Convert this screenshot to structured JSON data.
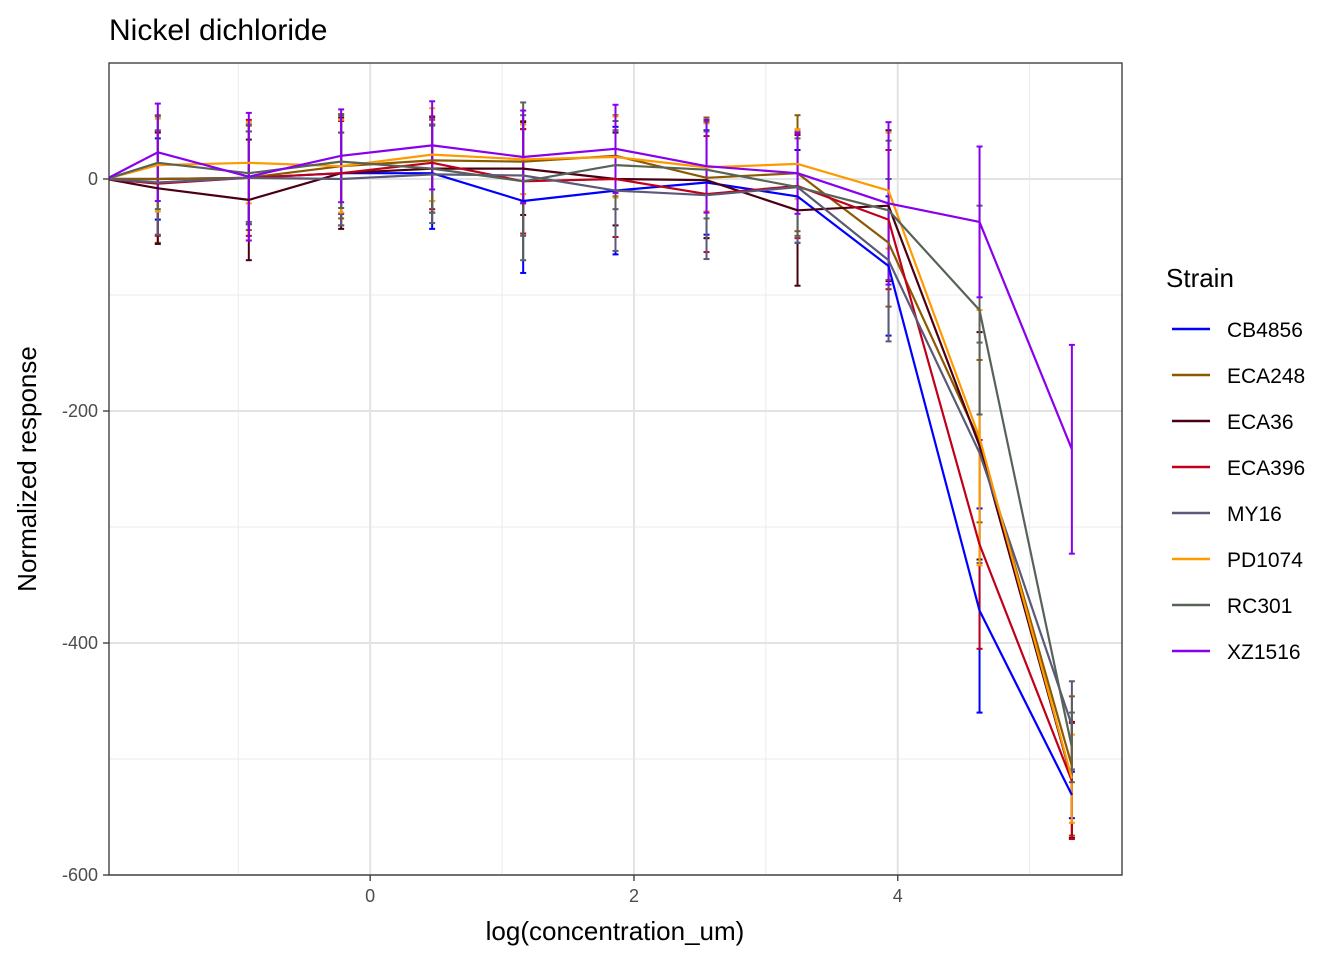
{
  "chart_data": {
    "type": "line",
    "title": "Nickel dichloride",
    "xlabel": "log(concentration_um)",
    "ylabel": "Normalized response",
    "xlim": [
      -1.98,
      5.7
    ],
    "ylim": [
      -600,
      100
    ],
    "x_ticks": [
      0,
      2,
      4
    ],
    "x_minor_ticks": [
      -1,
      1,
      3,
      5
    ],
    "y_ticks": [
      0,
      -200,
      -400,
      -600
    ],
    "y_minor_ticks": [
      -100,
      -300,
      -500
    ],
    "grid": true,
    "legend": {
      "title": "Strain",
      "position": "right"
    },
    "x": [
      -2.0,
      -1.61,
      -0.92,
      -0.22,
      0.47,
      1.16,
      1.86,
      2.55,
      3.24,
      3.93,
      4.62,
      5.32
    ],
    "series": [
      {
        "name": "CB4856",
        "color": "#0000ff",
        "values": [
          0,
          0,
          1,
          5,
          5,
          -19,
          -10,
          -3,
          -15,
          -75,
          -372,
          -531
        ],
        "errors": [
          0,
          35,
          40,
          35,
          48,
          62,
          55,
          45,
          40,
          60,
          88,
          20
        ]
      },
      {
        "name": "ECA248",
        "color": "#8b5a00",
        "values": [
          0,
          0,
          1,
          11,
          16,
          15,
          20,
          1,
          5,
          -55,
          -226,
          -506
        ],
        "errors": [
          0,
          55,
          45,
          45,
          35,
          35,
          35,
          52,
          50,
          55,
          70,
          60
        ]
      },
      {
        "name": "ECA36",
        "color": "#4a0012",
        "values": [
          0,
          -8,
          -18,
          5,
          9,
          9,
          0,
          -1,
          -27,
          -23,
          -230,
          -518
        ],
        "errors": [
          0,
          48,
          52,
          48,
          38,
          40,
          40,
          50,
          65,
          65,
          98,
          50
        ]
      },
      {
        "name": "ECA396",
        "color": "#c0001a",
        "values": [
          0,
          -4,
          1,
          5,
          14,
          -2,
          0,
          -13,
          -6,
          -35,
          -315,
          -519
        ],
        "errors": [
          0,
          45,
          50,
          45,
          40,
          45,
          50,
          50,
          45,
          60,
          90,
          50
        ]
      },
      {
        "name": "MY16",
        "color": "#5a5a78",
        "values": [
          0,
          -3,
          1,
          0,
          4,
          3,
          -10,
          -14,
          -7,
          -70,
          -236,
          -471
        ],
        "errors": [
          0,
          45,
          40,
          40,
          42,
          52,
          52,
          55,
          48,
          70,
          95,
          38
        ]
      },
      {
        "name": "PD1074",
        "color": "#ff9900",
        "values": [
          0,
          12,
          14,
          11,
          21,
          17,
          19,
          10,
          13,
          -10,
          -223,
          -517
        ],
        "errors": [
          0,
          40,
          35,
          40,
          40,
          30,
          35,
          38,
          30,
          50,
          110,
          38
        ]
      },
      {
        "name": "RC301",
        "color": "#586258",
        "values": [
          0,
          14,
          5,
          15,
          9,
          -2,
          12,
          8,
          -7,
          -27,
          -113,
          -490
        ],
        "errors": [
          0,
          40,
          42,
          40,
          38,
          68,
          38,
          42,
          42,
          60,
          90,
          30
        ]
      },
      {
        "name": "XZ1516",
        "color": "#8800ee",
        "values": [
          0,
          23,
          2,
          20,
          29,
          19,
          26,
          11,
          5,
          -21,
          -37,
          -233
        ],
        "errors": [
          0,
          42,
          55,
          40,
          38,
          40,
          38,
          40,
          35,
          70,
          65,
          90
        ]
      }
    ]
  }
}
